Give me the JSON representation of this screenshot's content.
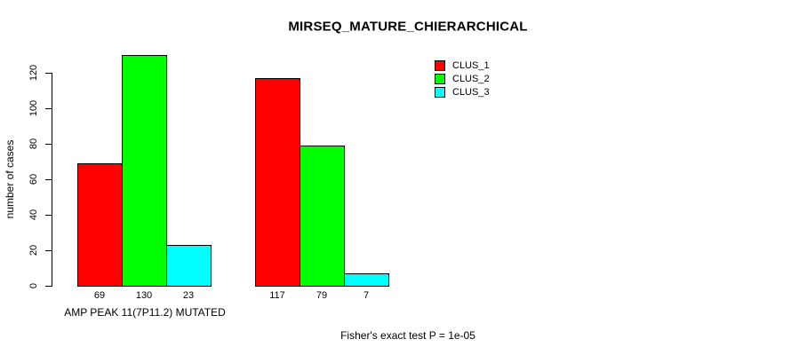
{
  "title": "MIRSEQ_MATURE_CHIERARCHICAL",
  "footnote": "Fisher's exact test P = 1e-05",
  "chart_data": {
    "type": "bar",
    "title": "MIRSEQ_MATURE_CHIERARCHICAL",
    "xlabel": "",
    "ylabel": "number of cases",
    "categories": [
      "AMP PEAK 11(7P11.2) MUTATED",
      ""
    ],
    "series": [
      {
        "name": "CLUS_1",
        "color": "#ff0000",
        "values": [
          69,
          117
        ]
      },
      {
        "name": "CLUS_2",
        "color": "#00ff00",
        "values": [
          130,
          79
        ]
      },
      {
        "name": "CLUS_3",
        "color": "#00ffff",
        "values": [
          23,
          7
        ]
      }
    ],
    "bar_value_labels": [
      [
        69,
        130,
        23
      ],
      [
        117,
        79,
        7
      ]
    ],
    "yticks": [
      0,
      20,
      40,
      60,
      80,
      100,
      120
    ],
    "ylim": [
      0,
      130
    ],
    "grid": false,
    "legend_position": "top-right",
    "annotation": "Fisher's exact test P = 1e-05"
  }
}
